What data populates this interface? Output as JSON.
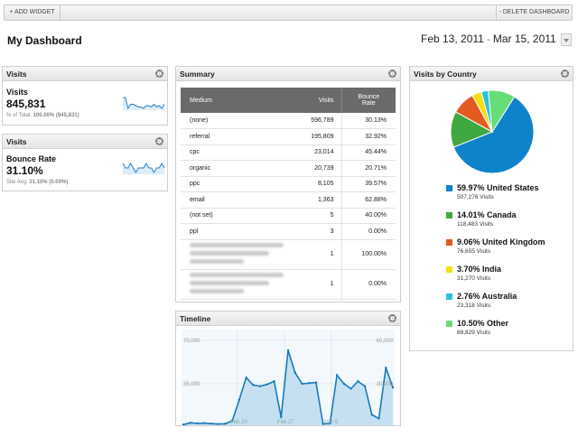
{
  "toolbar": {
    "add_widget": "+ ADD WIDGET",
    "delete_dashboard": "- DELETE DASHBOARD"
  },
  "header": {
    "title": "My Dashboard",
    "date_start": "Feb 13, 2011",
    "date_sep": "-",
    "date_end": "Mar 15, 2011"
  },
  "visits_widget": {
    "title": "Visits",
    "metric_name": "Visits",
    "metric_value": "845,831",
    "sub_prefix": "% of Total:",
    "sub_value": "100.00% (845,831)",
    "spark": [
      31,
      31,
      23,
      26,
      26,
      25,
      24,
      24,
      23,
      25,
      25,
      24,
      26,
      24,
      25,
      23,
      26
    ]
  },
  "bounce_widget": {
    "title": "Visits",
    "metric_name": "Bounce Rate",
    "metric_value": "31.10%",
    "sub_prefix": "Site Avg:",
    "sub_value": "31.10% (0.00%)",
    "spark": [
      32,
      31,
      31,
      32,
      31,
      30,
      31,
      31,
      31,
      32,
      31,
      31,
      30,
      31,
      31,
      32,
      31
    ]
  },
  "summary": {
    "title": "Summary",
    "headers": {
      "medium": "Medium",
      "visits": "Visits",
      "bounce_1": "Bounce",
      "bounce_2": "Rate"
    },
    "rows": [
      {
        "medium": "(none)",
        "visits": "596,789",
        "bounce": "30.13%"
      },
      {
        "medium": "referral",
        "visits": "195,809",
        "bounce": "32.92%"
      },
      {
        "medium": "cpc",
        "visits": "23,014",
        "bounce": "45.44%"
      },
      {
        "medium": "organic",
        "visits": "20,739",
        "bounce": "20.71%"
      },
      {
        "medium": "ppc",
        "visits": "8,105",
        "bounce": "39.57%"
      },
      {
        "medium": "email",
        "visits": "1,363",
        "bounce": "62.88%"
      },
      {
        "medium": "(not set)",
        "visits": "5",
        "bounce": "40.00%"
      },
      {
        "medium": "ppl",
        "visits": "3",
        "bounce": "0.00%"
      }
    ],
    "blurred_rows": [
      {
        "visits": "1",
        "bounce": "100.00%"
      },
      {
        "visits": "1",
        "bounce": "0.00%"
      }
    ]
  },
  "timeline": {
    "title": "Timeline",
    "y_left_top": "70,000",
    "y_left_mid": "35,000",
    "y_right_top": "60,000",
    "y_right_mid": "30,000",
    "x_labels": [
      "Feb 20",
      "Feb 27",
      "Mar 6"
    ]
  },
  "country": {
    "title": "Visits by Country",
    "items": [
      {
        "label": "59.97% United States",
        "visits": "507,276 Visits",
        "pct": 59.97,
        "color": "#0e83c9"
      },
      {
        "label": "14.01% Canada",
        "visits": "118,483 Visits",
        "pct": 14.01,
        "color": "#3fa83f"
      },
      {
        "label": "9.06% United Kingdom",
        "visits": "76,655 Visits",
        "pct": 9.06,
        "color": "#e35a20"
      },
      {
        "label": "3.70% India",
        "visits": "31,270 Visits",
        "pct": 3.7,
        "color": "#f2e10c"
      },
      {
        "label": "2.76% Australia",
        "visits": "23,318 Visits",
        "pct": 2.76,
        "color": "#2cc2d8"
      },
      {
        "label": "10.50% Other",
        "visits": "88,829 Visits",
        "pct": 10.5,
        "color": "#67dd77"
      }
    ]
  },
  "chart_data": [
    {
      "type": "pie",
      "categories": [
        "United States",
        "Canada",
        "United Kingdom",
        "India",
        "Australia",
        "Other"
      ],
      "values": [
        59.97,
        14.01,
        9.06,
        3.7,
        2.76,
        10.5
      ],
      "title": "Visits by Country"
    },
    {
      "type": "area",
      "title": "Timeline",
      "x": [
        "Feb 13",
        "Feb 14",
        "Feb 15",
        "Feb 16",
        "Feb 17",
        "Feb 18",
        "Feb 19",
        "Feb 20",
        "Feb 21",
        "Feb 22",
        "Feb 23",
        "Feb 24",
        "Feb 25",
        "Feb 26",
        "Feb 27",
        "Feb 28",
        "Mar 1",
        "Mar 2",
        "Mar 3",
        "Mar 4",
        "Mar 5",
        "Mar 6",
        "Mar 7",
        "Mar 8",
        "Mar 9",
        "Mar 10",
        "Mar 11",
        "Mar 12",
        "Mar 13",
        "Mar 14",
        "Mar 15"
      ],
      "values": [
        2000,
        3500,
        3000,
        3200,
        2800,
        2500,
        2700,
        5000,
        22000,
        40000,
        34000,
        33000,
        34500,
        37000,
        8000,
        62000,
        44000,
        35000,
        35500,
        36000,
        2500,
        3000,
        42000,
        35000,
        31000,
        37000,
        33000,
        10000,
        7000,
        48000,
        32000
      ],
      "ylim": [
        0,
        70000
      ]
    }
  ]
}
